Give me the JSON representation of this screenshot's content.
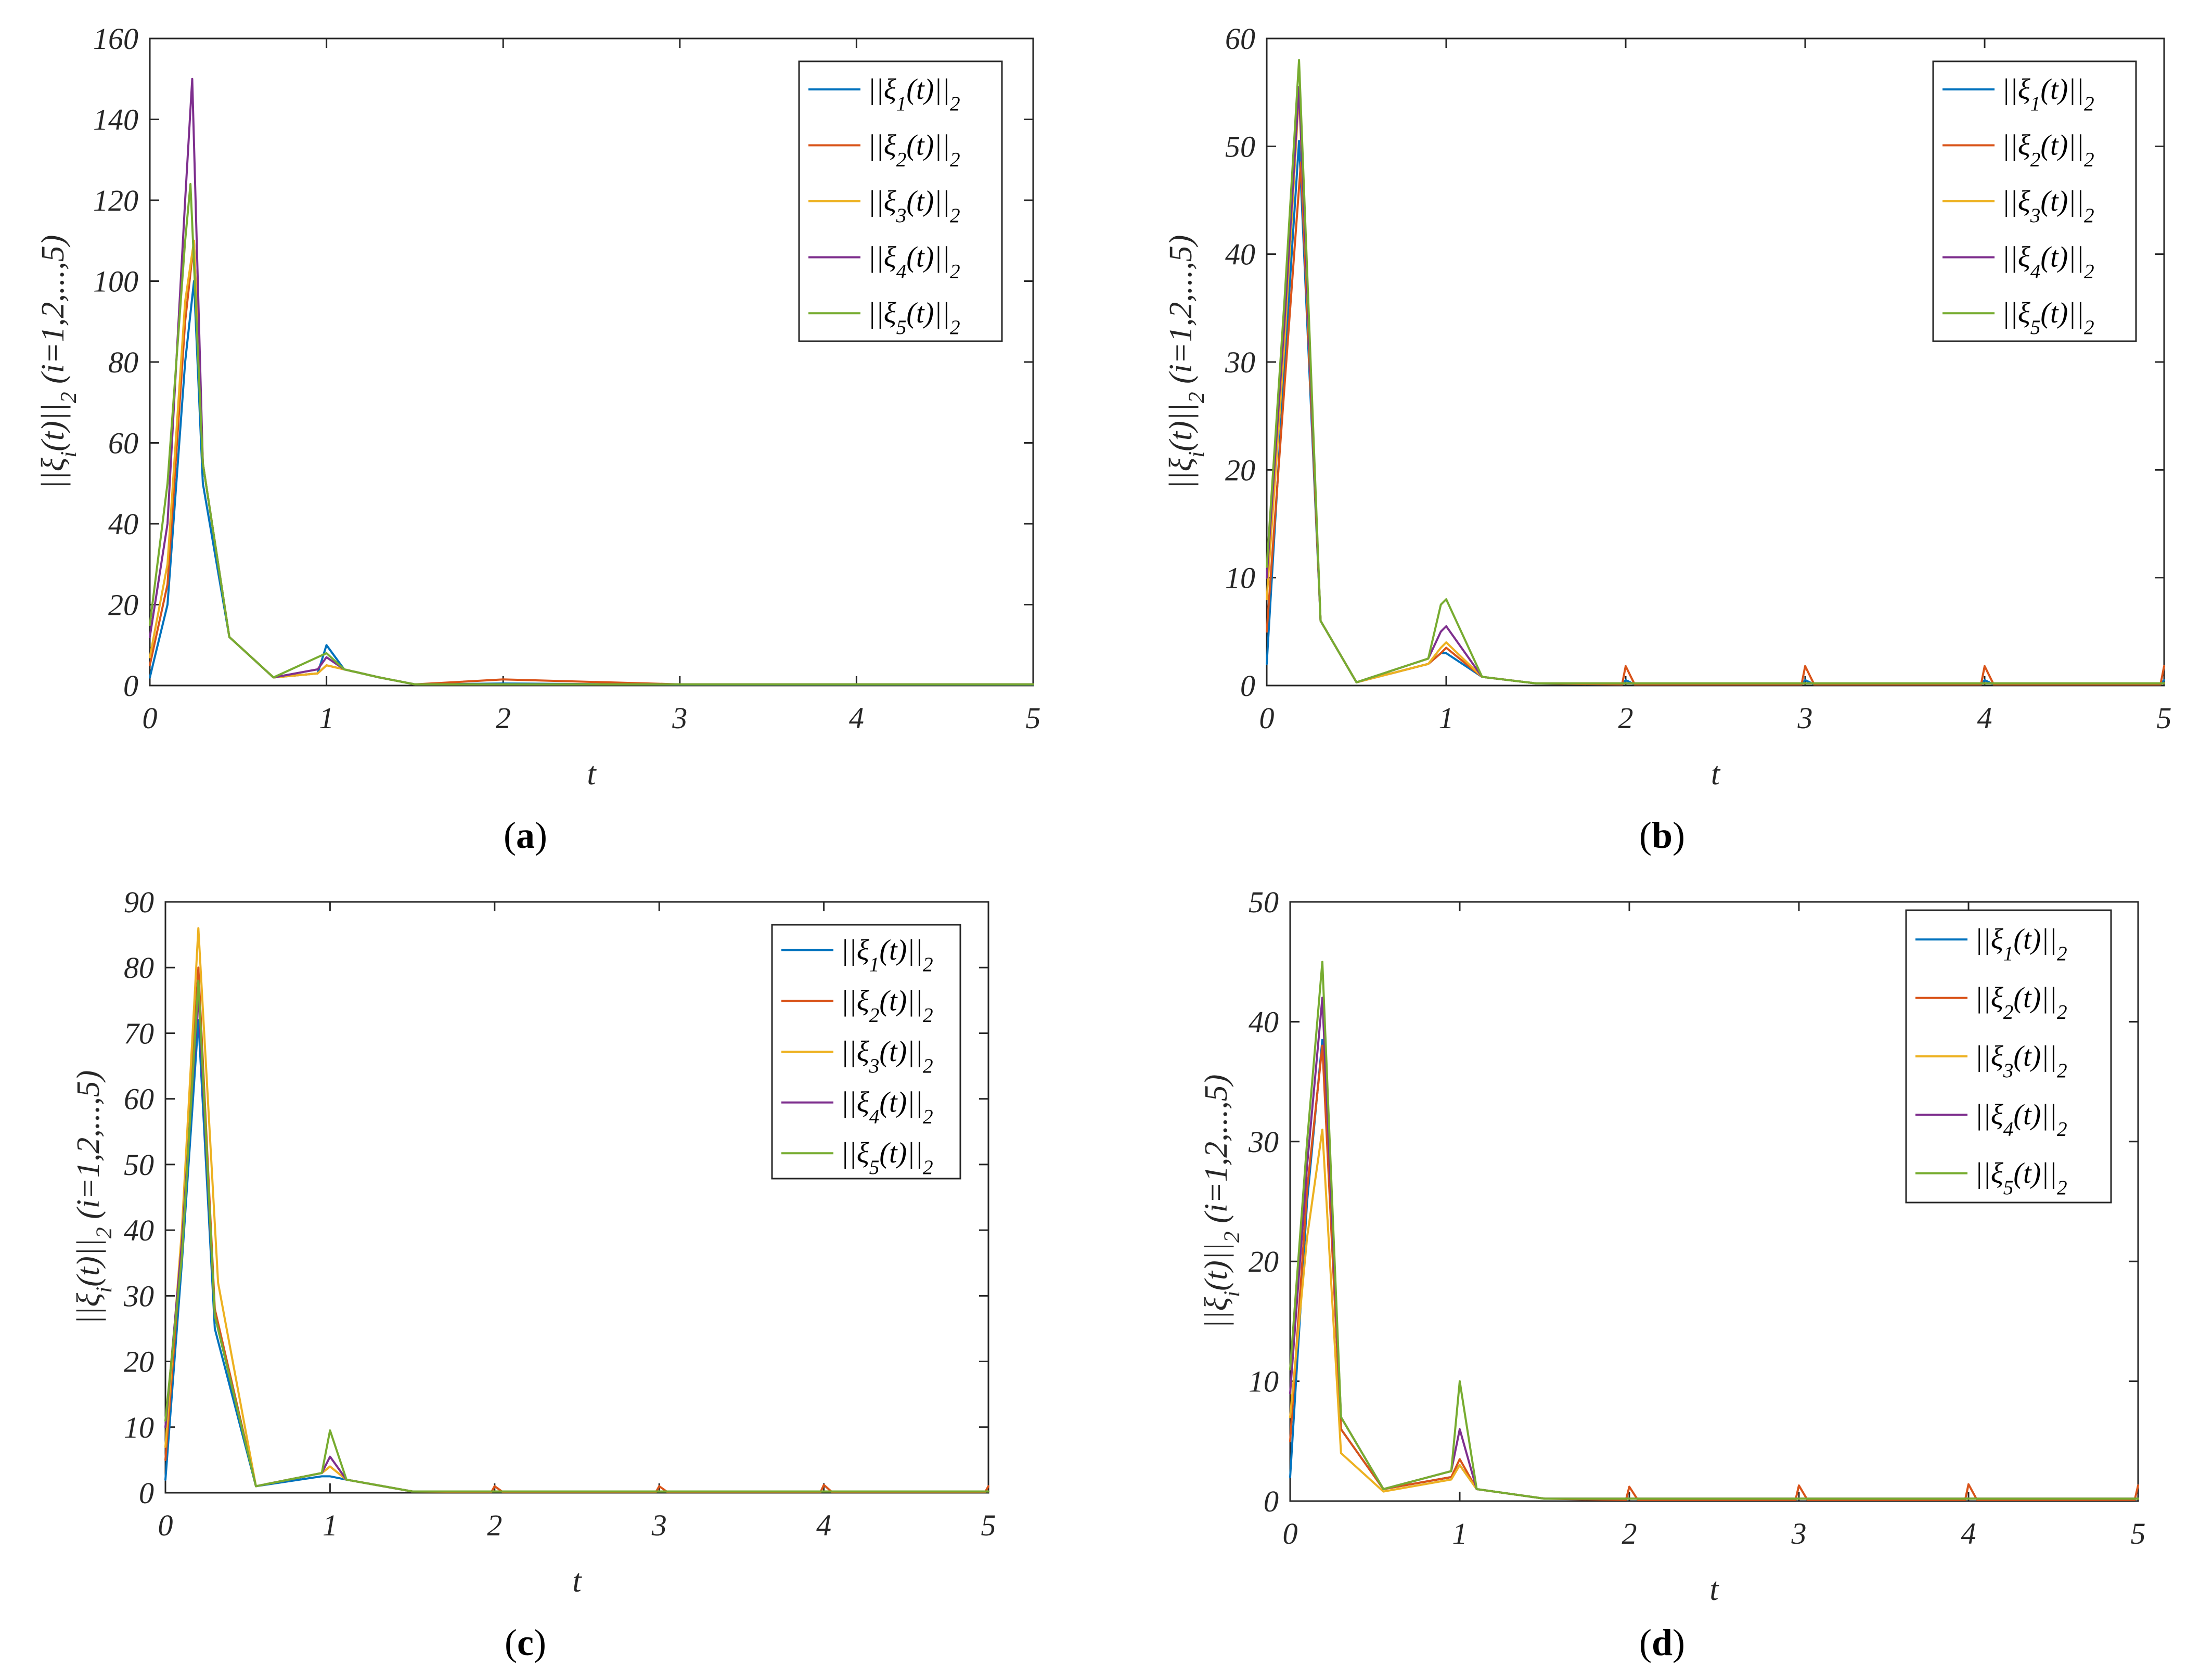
{
  "chart_data": [
    {
      "id": "a",
      "type": "line",
      "caption_open": "(",
      "caption_letter": "a",
      "caption_close": ")",
      "xlabel": "t",
      "ylabel_parts": [
        "||ξ",
        "i",
        "(t)||",
        "2",
        " (i=1,2,...,5)"
      ],
      "xlim": [
        0,
        5
      ],
      "ylim": [
        0,
        160
      ],
      "xticks": [
        "0",
        "1",
        "2",
        "3",
        "4",
        "5"
      ],
      "yticks": [
        "0",
        "20",
        "40",
        "60",
        "80",
        "100",
        "120",
        "140",
        "160"
      ],
      "legend_position": "top-right",
      "peaks": [
        100,
        110,
        110,
        150,
        124
      ],
      "starts": [
        2,
        5,
        7,
        12,
        15
      ],
      "secondary_peaks": [
        10,
        5,
        5,
        7,
        8
      ],
      "spikes": [
        0.5,
        1.5,
        0.3,
        0.3,
        0.3
      ],
      "series": [
        {
          "name": "||ξ1(t)||2",
          "label_parts": [
            "||ξ",
            "1",
            "(t)||",
            "2"
          ],
          "color": "#0072BD",
          "x": [
            0,
            0.1,
            0.2,
            0.25,
            0.3,
            0.45,
            0.7,
            0.95,
            1.0,
            1.1,
            1.3,
            1.5,
            2,
            3,
            4,
            5
          ],
          "y": [
            2,
            20,
            80,
            100,
            50,
            12,
            2,
            3,
            10,
            4,
            2,
            0.3,
            0.5,
            0.2,
            0.2,
            0.2
          ]
        },
        {
          "name": "||ξ2(t)||2",
          "label_parts": [
            "||ξ",
            "2",
            "(t)||",
            "2"
          ],
          "color": "#D95319",
          "x": [
            0,
            0.1,
            0.2,
            0.25,
            0.3,
            0.45,
            0.7,
            0.95,
            1.0,
            1.1,
            1.3,
            1.5,
            2,
            3,
            4,
            5
          ],
          "y": [
            5,
            25,
            90,
            110,
            55,
            12,
            2,
            3,
            5,
            4,
            2,
            0.3,
            1.5,
            0.3,
            0.3,
            0.3
          ]
        },
        {
          "name": "||ξ3(t)||2",
          "label_parts": [
            "||ξ",
            "3",
            "(t)||",
            "2"
          ],
          "color": "#EDB120",
          "x": [
            0,
            0.1,
            0.2,
            0.25,
            0.3,
            0.45,
            0.7,
            0.95,
            1.0,
            1.1,
            1.3,
            1.5,
            2,
            3,
            4,
            5
          ],
          "y": [
            7,
            30,
            95,
            110,
            55,
            12,
            2,
            3,
            5,
            4,
            2,
            0.3,
            0.3,
            0.3,
            0.3,
            0.3
          ]
        },
        {
          "name": "||ξ4(t)||2",
          "label_parts": [
            "||ξ",
            "4",
            "(t)||",
            "2"
          ],
          "color": "#7E2F8E",
          "x": [
            0,
            0.1,
            0.2,
            0.24,
            0.3,
            0.45,
            0.7,
            0.95,
            1.0,
            1.1,
            1.3,
            1.5,
            2,
            3,
            4,
            5
          ],
          "y": [
            12,
            40,
            120,
            150,
            55,
            12,
            2,
            4,
            7,
            4,
            2,
            0.3,
            0.3,
            0.3,
            0.3,
            0.3
          ]
        },
        {
          "name": "||ξ5(t)||2",
          "label_parts": [
            "||ξ",
            "5",
            "(t)||",
            "2"
          ],
          "color": "#77AC30",
          "x": [
            0,
            0.1,
            0.2,
            0.23,
            0.3,
            0.45,
            0.7,
            0.9,
            1.0,
            1.1,
            1.3,
            1.5,
            2,
            3,
            4,
            5
          ],
          "y": [
            15,
            50,
            110,
            124,
            55,
            12,
            2,
            6,
            8,
            4,
            2,
            0.3,
            0.3,
            0.3,
            0.3,
            0.3
          ]
        }
      ]
    },
    {
      "id": "b",
      "type": "line",
      "caption_open": "(",
      "caption_letter": "b",
      "caption_close": ")",
      "xlabel": "t",
      "ylabel_parts": [
        "||ξ",
        "i",
        "(t)||",
        "2",
        " (i=1,2,...,5)"
      ],
      "xlim": [
        0,
        5
      ],
      "ylim": [
        0,
        60
      ],
      "xticks": [
        "0",
        "1",
        "2",
        "3",
        "4",
        "5"
      ],
      "yticks": [
        "0",
        "10",
        "20",
        "30",
        "40",
        "50",
        "60"
      ],
      "legend_position": "top-right",
      "series": [
        {
          "name": "||ξ1(t)||2",
          "label_parts": [
            "||ξ",
            "1",
            "(t)||",
            "2"
          ],
          "color": "#0072BD",
          "x": [
            0,
            0.1,
            0.18,
            0.3,
            0.5,
            0.9,
            0.97,
            1.0,
            1.2,
            1.5,
            1.98,
            2.0,
            2.05,
            2.98,
            3.0,
            3.05,
            3.98,
            4.0,
            4.05,
            4.98,
            5.0
          ],
          "y": [
            2,
            30,
            50.5,
            6,
            0.3,
            2,
            3,
            3,
            0.8,
            0.2,
            0.1,
            0.5,
            0.1,
            0.1,
            0.5,
            0.1,
            0.1,
            0.5,
            0.1,
            0.1,
            0.5
          ]
        },
        {
          "name": "||ξ2(t)||2",
          "label_parts": [
            "||ξ",
            "2",
            "(t)||",
            "2"
          ],
          "color": "#D95319",
          "x": [
            0,
            0.1,
            0.19,
            0.3,
            0.5,
            0.9,
            0.97,
            1.0,
            1.2,
            1.5,
            1.98,
            2.0,
            2.05,
            2.98,
            3.0,
            3.05,
            3.98,
            4.0,
            4.05,
            4.98,
            5.0
          ],
          "y": [
            5,
            28,
            48.5,
            6,
            0.3,
            2,
            3,
            3.5,
            0.8,
            0.2,
            0.1,
            1.8,
            0.1,
            0.1,
            1.8,
            0.1,
            0.1,
            1.8,
            0.1,
            0.1,
            1.8
          ]
        },
        {
          "name": "||ξ3(t)||2",
          "label_parts": [
            "||ξ",
            "3",
            "(t)||",
            "2"
          ],
          "color": "#EDB120",
          "x": [
            0,
            0.1,
            0.18,
            0.3,
            0.5,
            0.9,
            0.97,
            1.0,
            1.2,
            1.5,
            2,
            3,
            4,
            5
          ],
          "y": [
            8,
            32,
            55,
            6,
            0.3,
            2,
            3.5,
            4,
            0.8,
            0.2,
            0.2,
            0.2,
            0.2,
            0.2
          ]
        },
        {
          "name": "||ξ4(t)||2",
          "label_parts": [
            "||ξ",
            "4",
            "(t)||",
            "2"
          ],
          "color": "#7E2F8E",
          "x": [
            0,
            0.1,
            0.18,
            0.3,
            0.5,
            0.9,
            0.97,
            1.0,
            1.2,
            1.5,
            2,
            3,
            4,
            5
          ],
          "y": [
            10,
            34,
            55.5,
            6,
            0.3,
            2.5,
            5,
            5.5,
            0.8,
            0.2,
            0.2,
            0.2,
            0.2,
            0.2
          ]
        },
        {
          "name": "||ξ5(t)||2",
          "label_parts": [
            "||ξ",
            "5",
            "(t)||",
            "2"
          ],
          "color": "#77AC30",
          "x": [
            0,
            0.1,
            0.18,
            0.3,
            0.5,
            0.9,
            0.97,
            1.0,
            1.2,
            1.5,
            2,
            3,
            4,
            5
          ],
          "y": [
            11,
            36,
            58,
            6,
            0.3,
            2.5,
            7.5,
            8,
            0.8,
            0.2,
            0.2,
            0.2,
            0.2,
            0.2
          ]
        }
      ]
    },
    {
      "id": "c",
      "type": "line",
      "caption_open": "(",
      "caption_letter": "c",
      "caption_close": ")",
      "xlabel": "t",
      "ylabel_parts": [
        "||ξ",
        "i",
        "(t)||",
        "2",
        " (i=1,2,...,5)"
      ],
      "xlim": [
        0,
        5
      ],
      "ylim": [
        0,
        90
      ],
      "xticks": [
        "0",
        "1",
        "2",
        "3",
        "4",
        "5"
      ],
      "yticks": [
        "0",
        "10",
        "20",
        "30",
        "40",
        "50",
        "60",
        "70",
        "80",
        "90"
      ],
      "legend_position": "top-right",
      "series": [
        {
          "name": "||ξ1(t)||2",
          "label_parts": [
            "||ξ",
            "1",
            "(t)||",
            "2"
          ],
          "color": "#0072BD",
          "x": [
            0,
            0.1,
            0.2,
            0.3,
            0.55,
            0.95,
            1.0,
            1.1,
            1.5,
            2,
            3,
            4,
            5
          ],
          "y": [
            2,
            35,
            72,
            25,
            1,
            2.5,
            2.5,
            2,
            0.2,
            0.2,
            0.2,
            0.2,
            0.2
          ]
        },
        {
          "name": "||ξ2(t)||2",
          "label_parts": [
            "||ξ",
            "2",
            "(t)||",
            "2"
          ],
          "color": "#D95319",
          "x": [
            0,
            0.1,
            0.2,
            0.3,
            0.55,
            0.95,
            1.0,
            1.1,
            1.5,
            1.98,
            2.0,
            2.05,
            2.98,
            3.0,
            3.05,
            3.98,
            4.0,
            4.05,
            4.98,
            5.0
          ],
          "y": [
            5,
            38,
            80,
            28,
            1,
            3,
            4,
            2,
            0.2,
            0.1,
            1,
            0.1,
            0.1,
            1,
            0.1,
            0.1,
            1.2,
            0.1,
            0.1,
            1
          ]
        },
        {
          "name": "||ξ3(t)||2",
          "label_parts": [
            "||ξ",
            "3",
            "(t)||",
            "2"
          ],
          "color": "#EDB120",
          "x": [
            0,
            0.1,
            0.2,
            0.32,
            0.55,
            0.95,
            1.0,
            1.1,
            1.5,
            2,
            3,
            4,
            5
          ],
          "y": [
            7,
            40,
            86,
            32,
            1,
            3,
            4,
            2,
            0.2,
            0.2,
            0.2,
            0.2,
            0.2
          ]
        },
        {
          "name": "||ξ4(t)||2",
          "label_parts": [
            "||ξ",
            "4",
            "(t)||",
            "2"
          ],
          "color": "#7E2F8E",
          "x": [
            0,
            0.1,
            0.2,
            0.3,
            0.55,
            0.95,
            1.0,
            1.1,
            1.5,
            2,
            3,
            4,
            5
          ],
          "y": [
            10,
            38,
            76,
            27,
            1,
            3,
            5.5,
            2,
            0.2,
            0.2,
            0.2,
            0.2,
            0.2
          ]
        },
        {
          "name": "||ξ5(t)||2",
          "label_parts": [
            "||ξ",
            "5",
            "(t)||",
            "2"
          ],
          "color": "#77AC30",
          "x": [
            0,
            0.1,
            0.2,
            0.3,
            0.55,
            0.95,
            1.0,
            1.1,
            1.5,
            2,
            3,
            4,
            5
          ],
          "y": [
            11,
            36,
            78,
            27,
            1,
            3,
            9.5,
            2,
            0.2,
            0.2,
            0.2,
            0.2,
            0.2
          ]
        }
      ]
    },
    {
      "id": "d",
      "type": "line",
      "caption_open": "(",
      "caption_letter": "d",
      "caption_close": ")",
      "xlabel": "t",
      "ylabel_parts": [
        "||ξ",
        "i",
        "(t)||",
        "2",
        " (i=1,2,...,5)"
      ],
      "xlim": [
        0,
        5
      ],
      "ylim": [
        0,
        50
      ],
      "xticks": [
        "0",
        "1",
        "2",
        "3",
        "4",
        "5"
      ],
      "yticks": [
        "0",
        "10",
        "20",
        "30",
        "40",
        "50"
      ],
      "legend_position": "top-right",
      "series": [
        {
          "name": "||ξ1(t)||2",
          "label_parts": [
            "||ξ",
            "1",
            "(t)||",
            "2"
          ],
          "color": "#0072BD",
          "x": [
            0,
            0.1,
            0.19,
            0.3,
            0.55,
            0.95,
            1.0,
            1.1,
            1.5,
            2,
            3,
            4,
            5
          ],
          "y": [
            2,
            25,
            38.5,
            6,
            1,
            2,
            3,
            1,
            0.2,
            0.2,
            0.2,
            0.2,
            0.2
          ]
        },
        {
          "name": "||ξ2(t)||2",
          "label_parts": [
            "||ξ",
            "2",
            "(t)||",
            "2"
          ],
          "color": "#D95319",
          "x": [
            0,
            0.1,
            0.19,
            0.3,
            0.55,
            0.95,
            1.0,
            1.1,
            1.5,
            1.98,
            2.0,
            2.05,
            2.98,
            3.0,
            3.05,
            3.98,
            4.0,
            4.05,
            4.98,
            5.0
          ],
          "y": [
            5,
            26,
            38,
            6,
            1,
            2,
            3.5,
            1,
            0.2,
            0.1,
            1.2,
            0.1,
            0.1,
            1.3,
            0.1,
            0.1,
            1.4,
            0.1,
            0.1,
            1.3
          ]
        },
        {
          "name": "||ξ3(t)||2",
          "label_parts": [
            "||ξ",
            "3",
            "(t)||",
            "2"
          ],
          "color": "#EDB120",
          "x": [
            0,
            0.1,
            0.19,
            0.3,
            0.55,
            0.95,
            1.0,
            1.1,
            1.5,
            2,
            3,
            4,
            5
          ],
          "y": [
            7,
            22,
            31,
            4,
            0.8,
            1.8,
            3,
            1,
            0.2,
            0.2,
            0.2,
            0.2,
            0.2
          ]
        },
        {
          "name": "||ξ4(t)||2",
          "label_parts": [
            "||ξ",
            "4",
            "(t)||",
            "2"
          ],
          "color": "#7E2F8E",
          "x": [
            0,
            0.1,
            0.19,
            0.3,
            0.55,
            0.95,
            1.0,
            1.1,
            1.5,
            2,
            3,
            4,
            5
          ],
          "y": [
            9,
            28,
            42,
            7,
            1,
            2.5,
            6,
            1,
            0.2,
            0.2,
            0.2,
            0.2,
            0.2
          ]
        },
        {
          "name": "||ξ5(t)||2",
          "label_parts": [
            "||ξ",
            "5",
            "(t)||",
            "2"
          ],
          "color": "#77AC30",
          "x": [
            0,
            0.1,
            0.19,
            0.3,
            0.55,
            0.95,
            1.0,
            1.1,
            1.5,
            2,
            3,
            4,
            5
          ],
          "y": [
            11,
            30,
            45,
            7,
            1,
            2.5,
            10,
            1,
            0.2,
            0.2,
            0.2,
            0.2,
            0.2
          ]
        }
      ]
    }
  ]
}
